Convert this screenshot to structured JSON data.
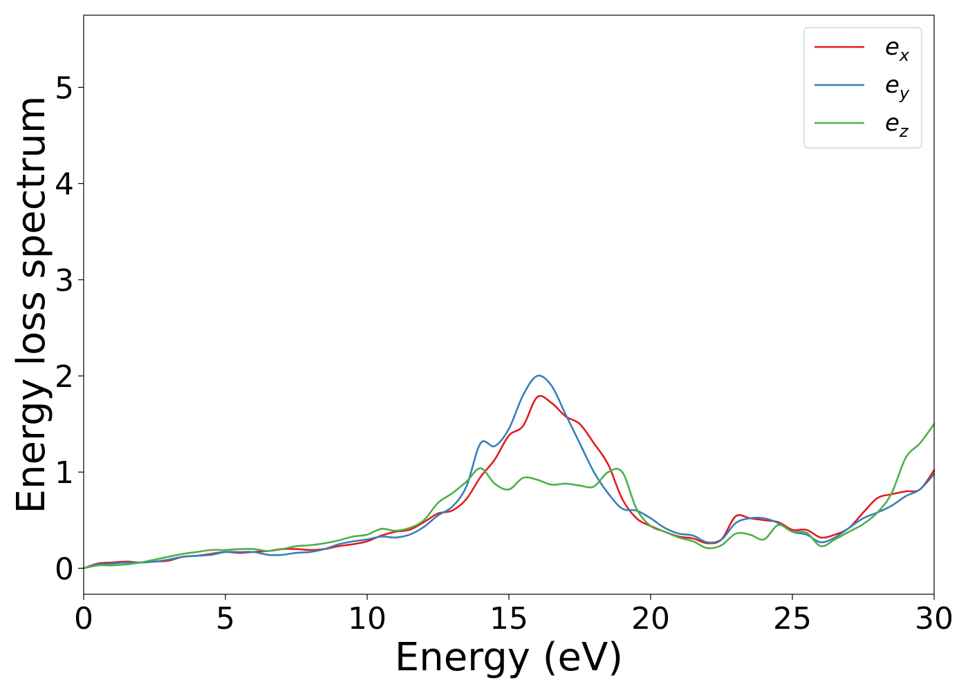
{
  "chart_data": {
    "type": "line",
    "title": "",
    "xlabel": "Energy (eV)",
    "ylabel": "Energy loss spectrum",
    "xlim": [
      0,
      30
    ],
    "ylim": [
      -0.27,
      5.75
    ],
    "xticks": [
      0,
      5,
      10,
      15,
      20,
      25,
      30
    ],
    "yticks": [
      0,
      1,
      2,
      3,
      4,
      5
    ],
    "xtick_labels": [
      "0",
      "5",
      "10",
      "15",
      "20",
      "25",
      "30"
    ],
    "ytick_labels": [
      "0",
      "1",
      "2",
      "3",
      "4",
      "5"
    ],
    "grid": false,
    "legend_position": "top-right",
    "x": [
      0,
      0.5,
      1,
      1.5,
      2,
      2.5,
      3,
      3.5,
      4,
      4.5,
      5,
      5.5,
      6,
      6.5,
      7,
      7.5,
      8,
      8.5,
      9,
      9.5,
      10,
      10.5,
      11,
      11.5,
      12,
      12.5,
      13,
      13.5,
      14,
      14.5,
      15,
      15.5,
      16,
      16.5,
      17,
      17.5,
      18,
      18.5,
      19,
      19.5,
      20,
      20.5,
      21,
      21.5,
      22,
      22.5,
      23,
      23.5,
      24,
      24.5,
      25,
      25.5,
      26,
      26.5,
      27,
      27.5,
      28,
      28.5,
      29,
      29.5,
      30
    ],
    "series": [
      {
        "name": "e",
        "subscript": "x",
        "color": "#e41a1c",
        "values": [
          0,
          0.05,
          0.06,
          0.07,
          0.06,
          0.07,
          0.08,
          0.12,
          0.13,
          0.15,
          0.17,
          0.16,
          0.17,
          0.18,
          0.2,
          0.2,
          0.19,
          0.2,
          0.23,
          0.25,
          0.28,
          0.34,
          0.38,
          0.4,
          0.48,
          0.57,
          0.6,
          0.72,
          0.95,
          1.13,
          1.38,
          1.48,
          1.78,
          1.72,
          1.58,
          1.5,
          1.3,
          1.08,
          0.72,
          0.52,
          0.44,
          0.38,
          0.33,
          0.31,
          0.26,
          0.3,
          0.54,
          0.52,
          0.5,
          0.48,
          0.4,
          0.4,
          0.32,
          0.35,
          0.42,
          0.58,
          0.73,
          0.77,
          0.8,
          0.82,
          1.02
        ]
      },
      {
        "name": "e",
        "subscript": "y",
        "color": "#377eb8",
        "values": [
          0,
          0.04,
          0.05,
          0.06,
          0.06,
          0.07,
          0.09,
          0.12,
          0.13,
          0.14,
          0.17,
          0.17,
          0.17,
          0.14,
          0.14,
          0.16,
          0.17,
          0.2,
          0.25,
          0.28,
          0.3,
          0.33,
          0.32,
          0.35,
          0.43,
          0.55,
          0.64,
          0.85,
          1.3,
          1.27,
          1.45,
          1.8,
          2.0,
          1.9,
          1.6,
          1.3,
          1.0,
          0.78,
          0.62,
          0.6,
          0.52,
          0.42,
          0.36,
          0.34,
          0.27,
          0.3,
          0.47,
          0.52,
          0.52,
          0.47,
          0.38,
          0.35,
          0.27,
          0.32,
          0.42,
          0.52,
          0.58,
          0.65,
          0.75,
          0.82,
          0.98
        ]
      },
      {
        "name": "e",
        "subscript": "z",
        "color": "#4daf4a",
        "values": [
          0,
          0.03,
          0.03,
          0.04,
          0.06,
          0.09,
          0.12,
          0.15,
          0.17,
          0.19,
          0.19,
          0.2,
          0.2,
          0.18,
          0.2,
          0.23,
          0.24,
          0.26,
          0.29,
          0.33,
          0.35,
          0.41,
          0.39,
          0.42,
          0.5,
          0.68,
          0.78,
          0.9,
          1.04,
          0.88,
          0.82,
          0.94,
          0.92,
          0.87,
          0.88,
          0.86,
          0.85,
          1.0,
          1.0,
          0.62,
          0.44,
          0.38,
          0.32,
          0.28,
          0.21,
          0.24,
          0.36,
          0.35,
          0.3,
          0.45,
          0.38,
          0.37,
          0.23,
          0.3,
          0.38,
          0.46,
          0.58,
          0.78,
          1.15,
          1.3,
          1.5
        ]
      }
    ]
  }
}
